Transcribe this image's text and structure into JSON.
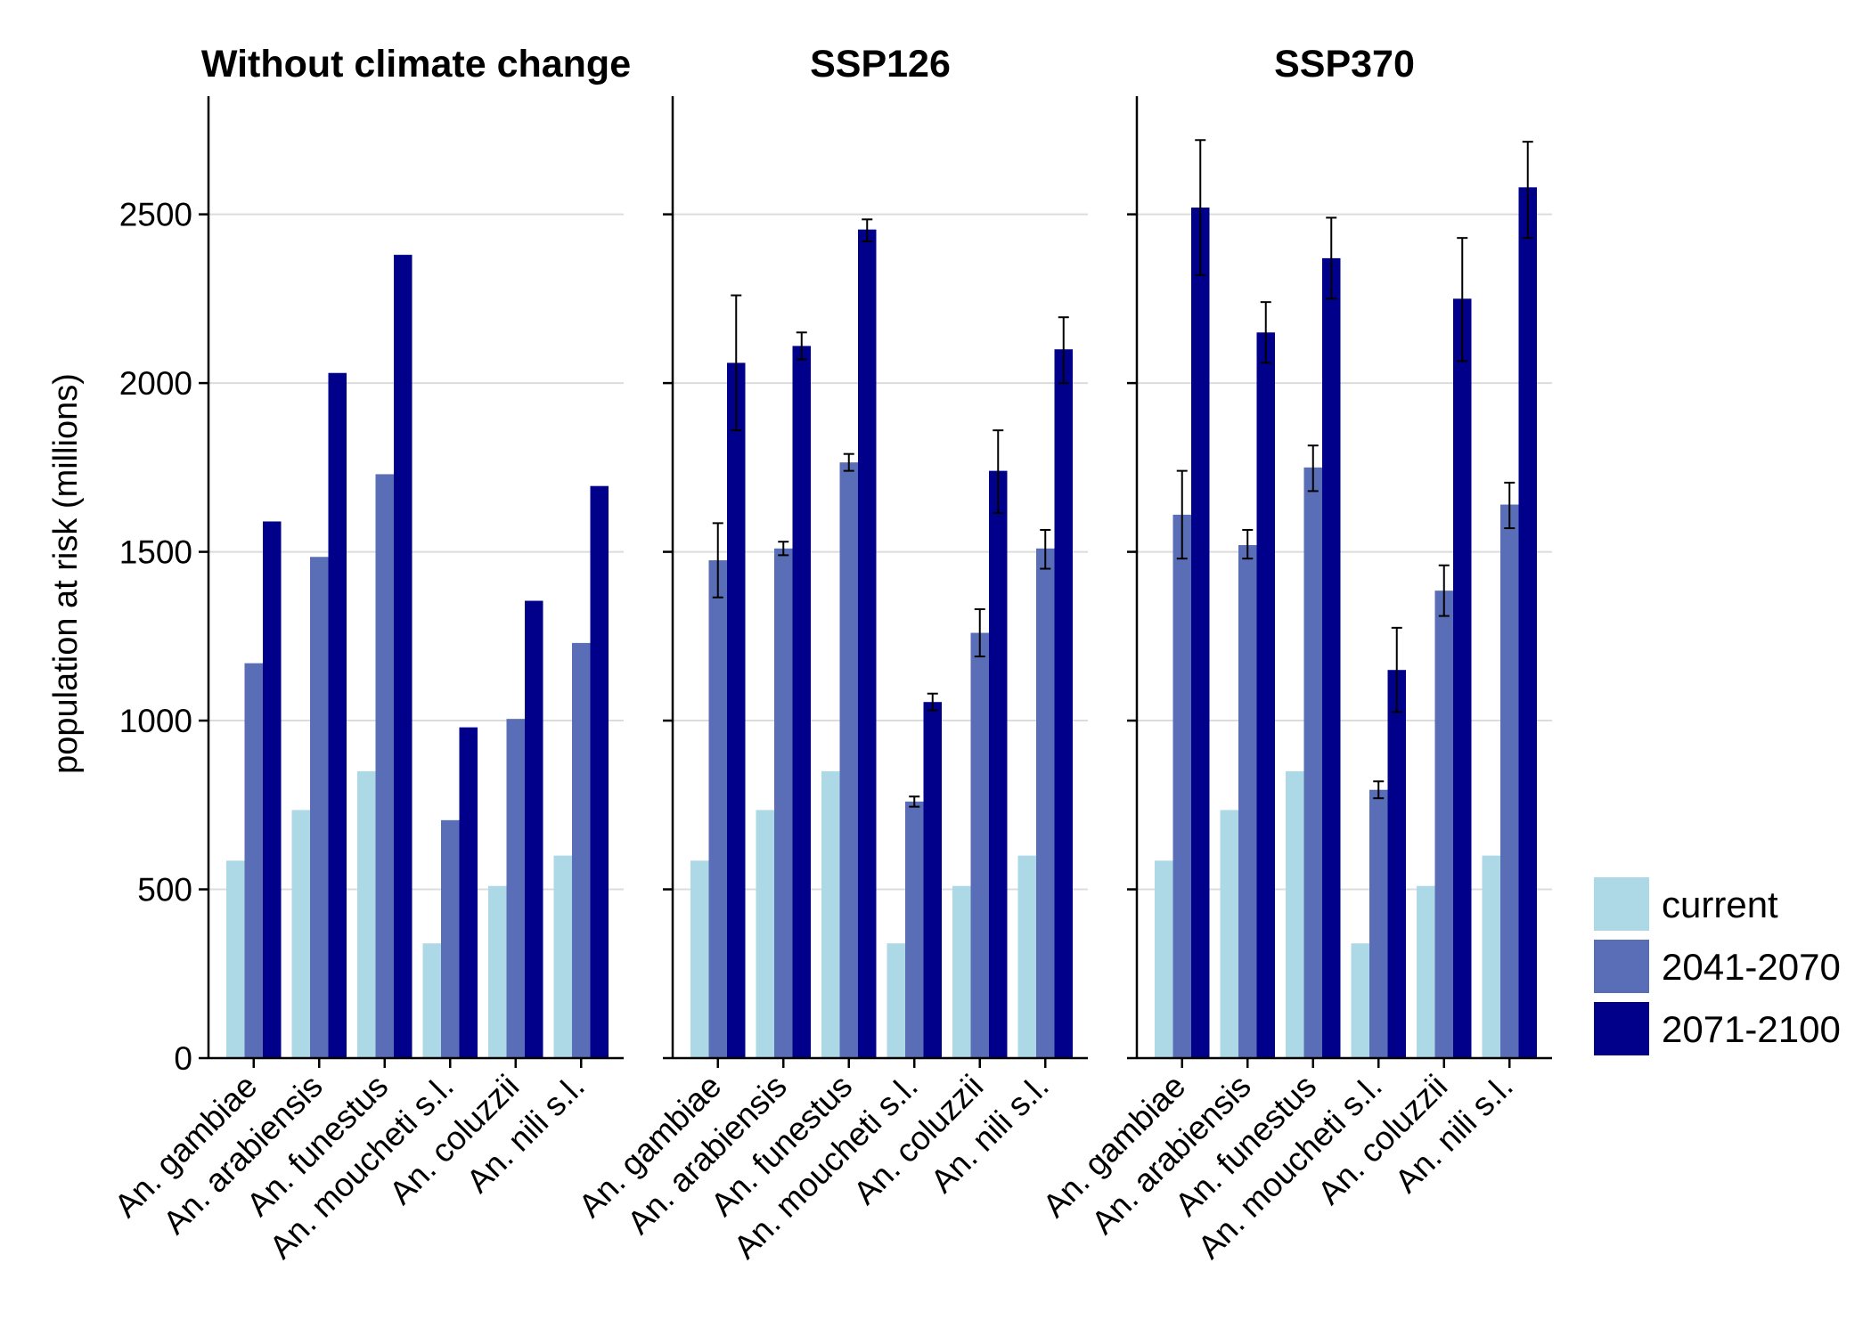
{
  "chart_data": {
    "type": "bar",
    "ylabel": "population at risk (millions)",
    "ylim": [
      0,
      2850
    ],
    "yticks": [
      0,
      500,
      1000,
      1500,
      2000,
      2500
    ],
    "grid": "horizontal",
    "legend_position": "right-bottom",
    "categories": [
      "An. gambiae",
      "An. arabiensis",
      "An. funestus",
      "An. moucheti s.l.",
      "An. coluzzii",
      "An. nili s.l."
    ],
    "series_names": [
      "current",
      "2041-2070",
      "2071-2100"
    ],
    "colors": [
      "#add8e6",
      "#5a6eb8",
      "#00008b"
    ],
    "panels": [
      {
        "title": "Without climate change",
        "series": [
          {
            "name": "current",
            "values": [
              585,
              735,
              850,
              340,
              510,
              600
            ]
          },
          {
            "name": "2041-2070",
            "values": [
              1170,
              1485,
              1730,
              705,
              1005,
              1230
            ]
          },
          {
            "name": "2071-2100",
            "values": [
              1590,
              2030,
              2380,
              980,
              1355,
              1695
            ]
          }
        ]
      },
      {
        "title": "SSP126",
        "series": [
          {
            "name": "current",
            "values": [
              585,
              735,
              850,
              340,
              510,
              600
            ]
          },
          {
            "name": "2041-2070",
            "values": [
              1475,
              1510,
              1765,
              760,
              1260,
              1510
            ],
            "err_low": [
              1365,
              1490,
              1740,
              745,
              1190,
              1450
            ],
            "err_high": [
              1585,
              1530,
              1790,
              775,
              1330,
              1565
            ]
          },
          {
            "name": "2071-2100",
            "values": [
              2060,
              2110,
              2455,
              1055,
              1740,
              2100
            ],
            "err_low": [
              1860,
              2070,
              2420,
              1030,
              1615,
              2000
            ],
            "err_high": [
              2260,
              2150,
              2485,
              1080,
              1860,
              2195
            ]
          }
        ]
      },
      {
        "title": "SSP370",
        "series": [
          {
            "name": "current",
            "values": [
              585,
              735,
              850,
              340,
              510,
              600
            ]
          },
          {
            "name": "2041-2070",
            "values": [
              1610,
              1520,
              1750,
              795,
              1385,
              1640
            ],
            "err_low": [
              1480,
              1480,
              1680,
              770,
              1310,
              1570
            ],
            "err_high": [
              1740,
              1565,
              1815,
              820,
              1460,
              1705
            ]
          },
          {
            "name": "2071-2100",
            "values": [
              2520,
              2150,
              2370,
              1150,
              2250,
              2580
            ],
            "err_low": [
              2320,
              2060,
              2250,
              1025,
              2065,
              2430
            ],
            "err_high": [
              2720,
              2240,
              2490,
              1275,
              2430,
              2715
            ]
          }
        ]
      }
    ]
  }
}
